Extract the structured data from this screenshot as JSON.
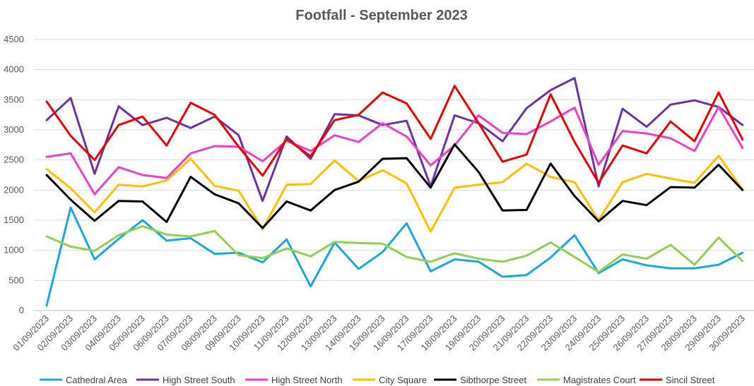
{
  "chart_data": {
    "type": "line",
    "title": "Footfall - September 2023",
    "xlabel": "",
    "ylabel": "",
    "ylim": [
      0,
      4500
    ],
    "y_ticks": [
      0,
      500,
      1000,
      1500,
      2000,
      2500,
      3000,
      3500,
      4000,
      4500
    ],
    "grid": "horizontal",
    "legend_position": "bottom",
    "categories": [
      "01/09/2023",
      "02/09/2023",
      "03/09/2023",
      "04/09/2023",
      "05/09/2023",
      "06/09/2023",
      "07/09/2023",
      "08/09/2023",
      "09/09/2023",
      "10/09/2023",
      "11/09/2023",
      "12/09/2023",
      "13/09/2023",
      "14/09/2023",
      "15/09/2023",
      "16/09/2023",
      "17/09/2023",
      "18/09/2023",
      "19/09/2023",
      "20/09/2023",
      "21/09/2023",
      "22/09/2023",
      "23/09/2023",
      "24/09/2023",
      "25/09/2023",
      "26/09/2023",
      "27/09/2023",
      "28/09/2023",
      "29/09/2023",
      "30/09/2023"
    ],
    "series": [
      {
        "name": "Cathedral Area",
        "color": "#1AA7E0",
        "values": [
          80,
          1710,
          850,
          1190,
          1500,
          1160,
          1200,
          940,
          960,
          800,
          1180,
          400,
          1130,
          690,
          970,
          1450,
          650,
          850,
          810,
          560,
          590,
          880,
          1250,
          620,
          850,
          750,
          700,
          700,
          760,
          960
        ]
      },
      {
        "name": "High Street South",
        "color": "#7030A0",
        "values": [
          3160,
          3530,
          2270,
          3390,
          3080,
          3200,
          3030,
          3220,
          2910,
          1820,
          2890,
          2520,
          3260,
          3240,
          3080,
          3150,
          2060,
          3240,
          3110,
          2810,
          3360,
          3660,
          3860,
          2060,
          3350,
          3050,
          3420,
          3490,
          3380,
          3080
        ]
      },
      {
        "name": "High Street North",
        "color": "#EE3FC7",
        "values": [
          2550,
          2610,
          1930,
          2380,
          2250,
          2200,
          2610,
          2730,
          2720,
          2480,
          2820,
          2650,
          2910,
          2800,
          3110,
          2890,
          2410,
          2740,
          3240,
          2950,
          2930,
          3140,
          3370,
          2420,
          2980,
          2940,
          2860,
          2650,
          3380,
          2700
        ]
      },
      {
        "name": "City Square",
        "color": "#FFC000",
        "values": [
          2350,
          2030,
          1630,
          2090,
          2060,
          2160,
          2520,
          2070,
          1990,
          1350,
          2090,
          2100,
          2490,
          2150,
          2330,
          2110,
          1310,
          2040,
          2090,
          2130,
          2440,
          2220,
          2130,
          1500,
          2130,
          2270,
          2190,
          2120,
          2570,
          2010
        ]
      },
      {
        "name": "Sibthorpe Street",
        "color": "#000000",
        "values": [
          2250,
          1840,
          1490,
          1820,
          1810,
          1470,
          2220,
          1930,
          1780,
          1370,
          1810,
          1660,
          2000,
          2140,
          2520,
          2530,
          2040,
          2760,
          2300,
          1660,
          1670,
          2440,
          1900,
          1480,
          1820,
          1750,
          2050,
          2040,
          2420,
          2000
        ]
      },
      {
        "name": "Magistrates Court",
        "color": "#92D050",
        "values": [
          1230,
          1060,
          990,
          1250,
          1400,
          1260,
          1230,
          1320,
          920,
          870,
          1030,
          900,
          1140,
          1120,
          1110,
          890,
          810,
          950,
          860,
          810,
          910,
          1130,
          890,
          640,
          930,
          860,
          1090,
          760,
          1210,
          820
        ]
      },
      {
        "name": "Sincil Street",
        "color": "#EE0000",
        "values": [
          3470,
          2900,
          2500,
          3080,
          3220,
          2740,
          3450,
          3250,
          2720,
          2240,
          2850,
          2560,
          3160,
          3250,
          3620,
          3440,
          2850,
          3730,
          3110,
          2470,
          2590,
          3590,
          2800,
          2120,
          2740,
          2610,
          3140,
          2810,
          3620,
          2840
        ]
      }
    ]
  }
}
